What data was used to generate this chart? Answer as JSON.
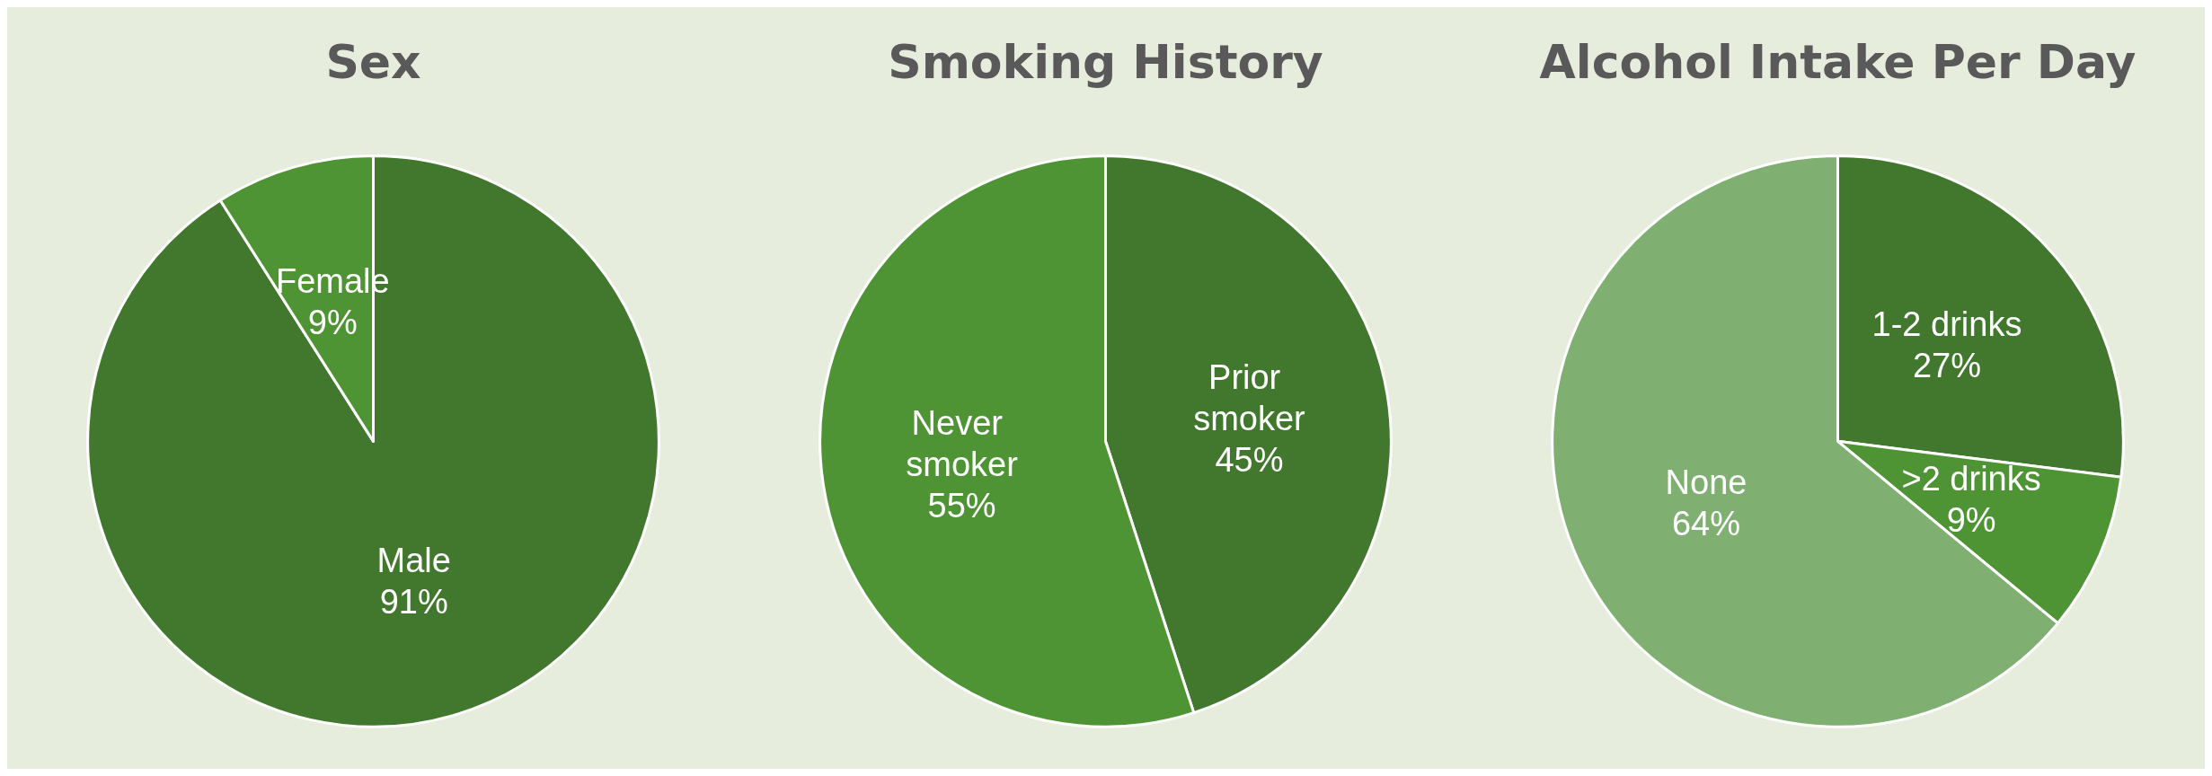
{
  "chart_data": [
    {
      "type": "pie",
      "title": "Sex",
      "categories": [
        "Male",
        "Female"
      ],
      "values": [
        91,
        9
      ],
      "colors": [
        "#41782e",
        "#4e9434"
      ],
      "value_labels": [
        "91%",
        "9%"
      ]
    },
    {
      "type": "pie",
      "title": "Smoking History",
      "categories": [
        "Prior smoker",
        "Never smoker"
      ],
      "values": [
        45,
        55
      ],
      "colors": [
        "#41782e",
        "#4e9434"
      ],
      "value_labels": [
        "45%",
        "55%"
      ]
    },
    {
      "type": "pie",
      "title": "Alcohol Intake Per Day",
      "categories": [
        "1-2 drinks",
        ">2 drinks",
        "None"
      ],
      "values": [
        27,
        9,
        64
      ],
      "colors": [
        "#41782e",
        "#4e9434",
        "#7fb072"
      ],
      "value_labels": [
        "27%",
        "9%",
        "64%"
      ]
    }
  ]
}
